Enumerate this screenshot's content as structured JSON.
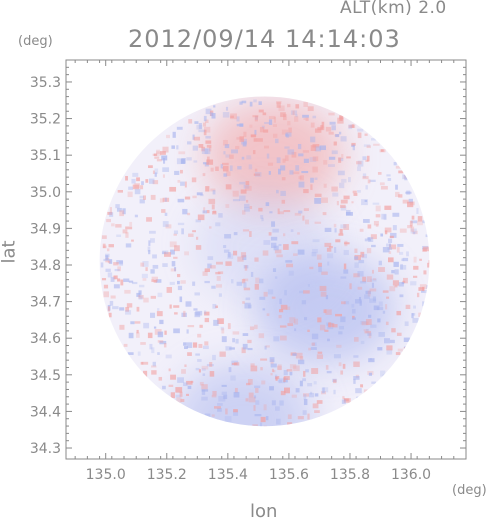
{
  "header": {
    "altitude_label": "ALT(km) 2.0",
    "timestamp": "2012/09/14 14:14:03"
  },
  "axes": {
    "lat_unit": "(deg)",
    "lon_unit": "(deg)",
    "lat_label": "lat",
    "lon_label": "lon"
  },
  "chart_data": {
    "type": "heatmap",
    "title": "2012/09/14 14:14:03",
    "subtitle": "ALT(km) 2.0",
    "xlabel": "lon",
    "ylabel": "lat",
    "xunit": "(deg)",
    "yunit": "(deg)",
    "xlim": [
      134.87,
      136.18
    ],
    "ylim": [
      34.27,
      35.36
    ],
    "xticks": [
      "135.0",
      "135.2",
      "135.4",
      "135.6",
      "135.8",
      "136.0"
    ],
    "yticks": [
      "34.3",
      "34.4",
      "34.5",
      "34.6",
      "34.7",
      "34.8",
      "34.9",
      "35.0",
      "35.1",
      "35.2",
      "35.3"
    ],
    "domain": {
      "shape": "circle",
      "center_lon": 135.52,
      "center_lat": 34.81,
      "radius_deg": 0.54
    },
    "colors": {
      "positive": "#f2a0a0",
      "negative": "#a8b4ee",
      "neutral": "#f2f0fa",
      "axis": "#8a8a8a"
    },
    "regions": [
      {
        "name": "",
        "sign": "positive",
        "lon": 135.55,
        "lat": 35.1,
        "strength": 0.55
      },
      {
        "name": "",
        "sign": "negative",
        "lon": 135.72,
        "lat": 34.68,
        "strength": 0.6
      },
      {
        "name": "",
        "sign": "negative",
        "lon": 135.45,
        "lat": 34.38,
        "strength": 0.5
      },
      {
        "name": "",
        "sign": "negative",
        "lon": 135.52,
        "lat": 34.85,
        "strength": 0.25
      }
    ],
    "grid": false,
    "legend": "none"
  }
}
